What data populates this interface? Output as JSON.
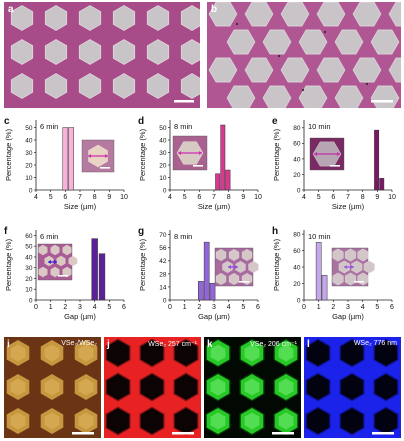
{
  "images": {
    "a": {
      "label": "a"
    },
    "b": {
      "label": "b"
    },
    "i": {
      "label": "i",
      "overlay": "VSe₂/WSe₂"
    },
    "j": {
      "label": "j",
      "overlay": "WSe₂ 257 cm⁻¹"
    },
    "k": {
      "label": "k",
      "overlay": "VSe₂ 206 cm⁻¹"
    },
    "l": {
      "label": "l",
      "overlay": "WSe₂ 776 nm"
    }
  },
  "colors": {
    "substrate_a": "#a84b89",
    "substrate_b": "#b05693",
    "hex_fill": "#c9c4c8",
    "bar_size_6": "#f9b2da",
    "bar_size_8": "#d8388f",
    "bar_size_10": "#7b1862",
    "bar_gap_6": "#5a2199",
    "bar_gap_8": "#9366d8",
    "bar_gap_10": "#c4a8ea",
    "raman_red": "#e82222",
    "raman_green": "#27c927",
    "pl_blue": "#1b22ea",
    "optical_brown": "#6b3415",
    "optical_gold": "#c7973f"
  },
  "chart_data": [
    {
      "id": "c",
      "label": "c",
      "type": "bar",
      "time": "6 min",
      "xlabel": "Size (µm)",
      "ylabel": "Percentage (%)",
      "xlim": [
        4,
        10
      ],
      "ylim": [
        0,
        56
      ],
      "xticks": [
        4,
        5,
        6,
        7,
        8,
        9,
        10
      ],
      "yticks": [
        0,
        10,
        20,
        30,
        40,
        50
      ],
      "bar_width": 0.35,
      "x": [
        6.0,
        6.4
      ],
      "values": [
        50,
        50
      ],
      "color": "#f9b2da"
    },
    {
      "id": "d",
      "label": "d",
      "type": "bar",
      "time": "8 min",
      "xlabel": "Size (µm)",
      "ylabel": "Percentage (%)",
      "xlim": [
        4,
        10
      ],
      "ylim": [
        0,
        56
      ],
      "xticks": [
        4,
        5,
        6,
        7,
        8,
        9,
        10
      ],
      "yticks": [
        0,
        10,
        20,
        30,
        40,
        50
      ],
      "bar_width": 0.3,
      "x": [
        7.25,
        7.6,
        7.95
      ],
      "values": [
        13,
        52,
        16
      ],
      "color": "#d8388f"
    },
    {
      "id": "e",
      "label": "e",
      "type": "bar",
      "time": "10 min",
      "xlabel": "Size (µm)",
      "ylabel": "Percentage (%)",
      "xlim": [
        4,
        10
      ],
      "ylim": [
        0,
        90
      ],
      "xticks": [
        4,
        5,
        6,
        7,
        8,
        9,
        10
      ],
      "yticks": [
        0,
        20,
        40,
        60,
        80
      ],
      "bar_width": 0.3,
      "x": [
        8.95,
        9.3
      ],
      "values": [
        77,
        15
      ],
      "color": "#7b1862"
    },
    {
      "id": "f",
      "label": "f",
      "type": "bar",
      "time": "6 min",
      "xlabel": "Gap (µm)",
      "ylabel": "Percentage (%)",
      "xlim": [
        0,
        6
      ],
      "ylim": [
        0,
        65
      ],
      "xticks": [
        0,
        1,
        2,
        3,
        4,
        5,
        6
      ],
      "yticks": [
        0,
        10,
        20,
        30,
        40,
        50,
        60
      ],
      "bar_width": 0.4,
      "x": [
        4.0,
        4.5
      ],
      "values": [
        57,
        43
      ],
      "color": "#5a2199"
    },
    {
      "id": "g",
      "label": "g",
      "type": "bar",
      "time": "8 min",
      "xlabel": "Gap (µm)",
      "ylabel": "Percentage (%)",
      "xlim": [
        0,
        6
      ],
      "ylim": [
        0,
        75
      ],
      "xticks": [
        0,
        1,
        2,
        3,
        4,
        5,
        6
      ],
      "yticks": [
        0,
        14,
        28,
        42,
        56,
        70
      ],
      "bar_width": 0.35,
      "x": [
        2.1,
        2.5,
        2.9
      ],
      "values": [
        20,
        62,
        18
      ],
      "color": "#9366d8"
    },
    {
      "id": "h",
      "label": "h",
      "type": "bar",
      "time": "10 min",
      "xlabel": "Gap (µm)",
      "ylabel": "Percentage (%)",
      "xlim": [
        0,
        6
      ],
      "ylim": [
        0,
        85
      ],
      "xticks": [
        0,
        1,
        2,
        3,
        4,
        5,
        6
      ],
      "yticks": [
        0,
        20,
        40,
        60,
        80
      ],
      "bar_width": 0.35,
      "x": [
        1.0,
        1.4
      ],
      "values": [
        70,
        30
      ],
      "color": "#c4a8ea"
    }
  ]
}
